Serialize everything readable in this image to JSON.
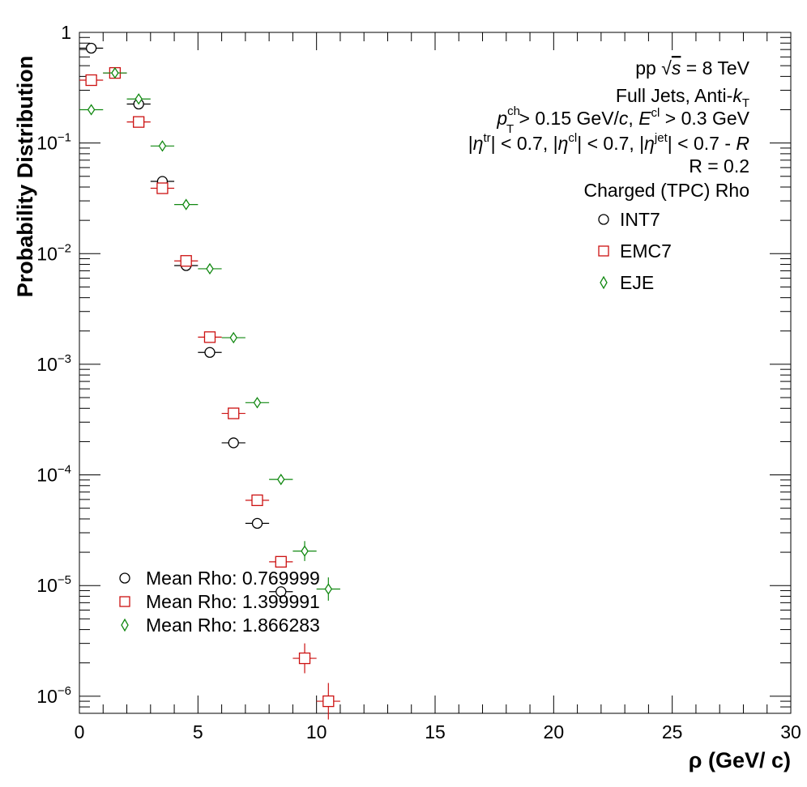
{
  "chart_data": {
    "type": "scatter",
    "xlabel": "ρ (GeV/ c)",
    "ylabel": "Probability Distribution",
    "xlim": [
      0,
      30
    ],
    "ylim": [
      7e-07,
      1
    ],
    "y_scale": "log",
    "x_ticks": [
      "0",
      "5",
      "10",
      "15",
      "20",
      "25",
      "30"
    ],
    "y_ticks": [
      {
        "base": "1",
        "exp": ""
      },
      {
        "base": "10",
        "exp": "−1"
      },
      {
        "base": "10",
        "exp": "−2"
      },
      {
        "base": "10",
        "exp": "−3"
      },
      {
        "base": "10",
        "exp": "−4"
      },
      {
        "base": "10",
        "exp": "−5"
      },
      {
        "base": "10",
        "exp": "−6"
      }
    ],
    "grid": false,
    "legend_position": "top-right",
    "series": [
      {
        "name": "INT7",
        "marker": "circle",
        "color": "#000000",
        "points": [
          {
            "x": 0.5,
            "y": 0.72
          },
          {
            "x": 1.5,
            "y": 0.43
          },
          {
            "x": 2.5,
            "y": 0.225
          },
          {
            "x": 3.5,
            "y": 0.045
          },
          {
            "x": 4.5,
            "y": 0.0078
          },
          {
            "x": 5.5,
            "y": 0.00128
          },
          {
            "x": 6.5,
            "y": 0.000195
          },
          {
            "x": 7.5,
            "y": 3.65e-05
          },
          {
            "x": 8.5,
            "y": 8.8e-06
          }
        ]
      },
      {
        "name": "EMC7",
        "marker": "square",
        "color": "#cc1111",
        "points": [
          {
            "x": 0.5,
            "y": 0.37
          },
          {
            "x": 1.5,
            "y": 0.43
          },
          {
            "x": 2.5,
            "y": 0.155
          },
          {
            "x": 3.5,
            "y": 0.039
          },
          {
            "x": 4.5,
            "y": 0.0086
          },
          {
            "x": 5.5,
            "y": 0.00176
          },
          {
            "x": 6.5,
            "y": 0.00036
          },
          {
            "x": 7.5,
            "y": 5.9e-05
          },
          {
            "x": 8.5,
            "y": 1.64e-05
          },
          {
            "x": 9.5,
            "y": 2.2e-06,
            "err": 0.9
          },
          {
            "x": 10.5,
            "y": 9e-07,
            "err": 1.1
          }
        ]
      },
      {
        "name": "EJE",
        "marker": "diamond",
        "color": "#118811",
        "points": [
          {
            "x": 0.5,
            "y": 0.2
          },
          {
            "x": 1.5,
            "y": 0.43
          },
          {
            "x": 2.5,
            "y": 0.25
          },
          {
            "x": 3.5,
            "y": 0.094
          },
          {
            "x": 4.5,
            "y": 0.0278
          },
          {
            "x": 5.5,
            "y": 0.0073
          },
          {
            "x": 6.5,
            "y": 0.00174
          },
          {
            "x": 7.5,
            "y": 0.00045
          },
          {
            "x": 8.5,
            "y": 9.1e-05
          },
          {
            "x": 9.5,
            "y": 2.05e-05,
            "err": 0.6
          },
          {
            "x": 10.5,
            "y": 9.3e-06,
            "err": 0.7
          }
        ]
      }
    ],
    "annotations": {
      "line1": "pp √s = 8 TeV",
      "line2": "Full Jets, Anti-kT",
      "line3": "pT^ch > 0.15 GeV/c, E^cl > 0.3 GeV",
      "line4": "|η^tr| < 0.7, |η^cl| < 0.7, |η^jet| < 0.7 - R",
      "line5": "R = 0.2",
      "line6": "Charged (TPC) Rho"
    },
    "mean_legend": [
      "Mean Rho: 0.769999",
      "Mean Rho: 1.399991",
      "Mean Rho: 1.866283"
    ]
  }
}
